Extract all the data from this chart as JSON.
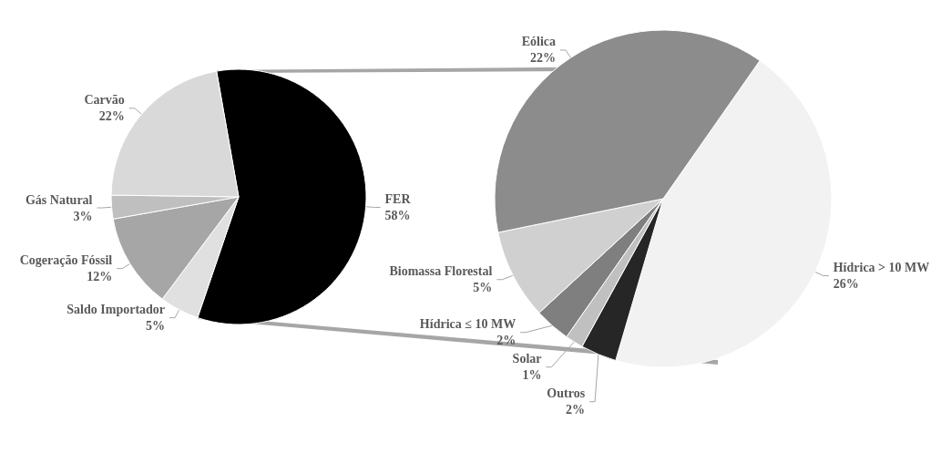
{
  "chart_data": [
    {
      "type": "pie",
      "categories": [
        "FER",
        "Saldo Importador",
        "Cogeração Fóssil",
        "Gás Natural",
        "Carvão"
      ],
      "values": [
        58,
        5,
        12,
        3,
        22
      ],
      "colors": [
        "#000000",
        "#e0e0e0",
        "#a6a6a6",
        "#bfbfbf",
        "#d9d9d9"
      ],
      "value_labels": [
        "58%",
        "5%",
        "12%",
        "3%",
        "22%"
      ]
    },
    {
      "type": "pie",
      "categories": [
        "Hídrica > 10 MW",
        "Outros",
        "Solar",
        "Hídrica ≤ 10 MW",
        "Biomassa Florestal",
        "Eólica"
      ],
      "values": [
        26,
        2,
        1,
        2,
        5,
        22
      ],
      "colors": [
        "#f2f2f2",
        "#262626",
        "#c0c0c0",
        "#7f7f7f",
        "#d0d0d0",
        "#8c8c8c"
      ],
      "value_labels": [
        "26%",
        "2%",
        "1%",
        "2%",
        "5%",
        "22%"
      ]
    }
  ]
}
